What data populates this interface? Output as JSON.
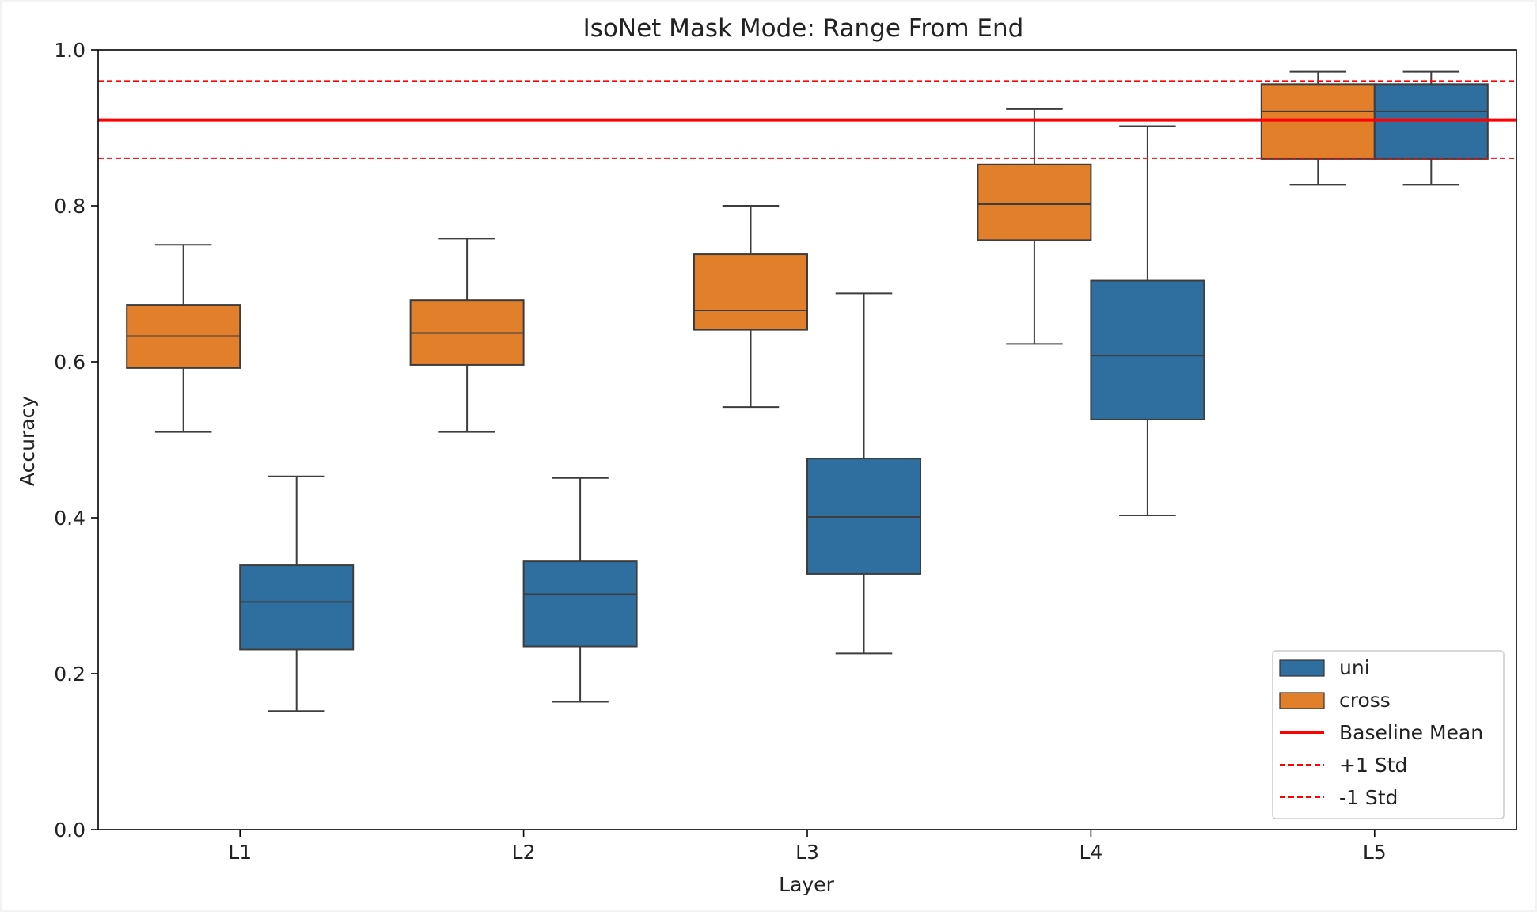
{
  "chart_data": {
    "type": "boxplot",
    "title": "IsoNet Mask Mode: Range From End",
    "xlabel": "Layer",
    "ylabel": "Accuracy",
    "ylim": [
      0.0,
      1.0
    ],
    "yticks": [
      "0.0",
      "0.2",
      "0.4",
      "0.6",
      "0.8",
      "1.0"
    ],
    "categories": [
      "L1",
      "L2",
      "L3",
      "L4",
      "L5"
    ],
    "grid": false,
    "legend_position": "bottom-right",
    "series": [
      {
        "name": "cross",
        "color": "#e17f2b",
        "boxes": [
          {
            "whisker_low": 0.51,
            "q1": 0.592,
            "median": 0.633,
            "q3": 0.673,
            "whisker_high": 0.75
          },
          {
            "whisker_low": 0.51,
            "q1": 0.596,
            "median": 0.637,
            "q3": 0.679,
            "whisker_high": 0.758
          },
          {
            "whisker_low": 0.542,
            "q1": 0.641,
            "median": 0.666,
            "q3": 0.738,
            "whisker_high": 0.8
          },
          {
            "whisker_low": 0.623,
            "q1": 0.756,
            "median": 0.802,
            "q3": 0.853,
            "whisker_high": 0.924
          },
          {
            "whisker_low": 0.827,
            "q1": 0.86,
            "median": 0.921,
            "q3": 0.956,
            "whisker_high": 0.972
          }
        ]
      },
      {
        "name": "uni",
        "color": "#2f6f9f",
        "boxes": [
          {
            "whisker_low": 0.152,
            "q1": 0.231,
            "median": 0.292,
            "q3": 0.339,
            "whisker_high": 0.453
          },
          {
            "whisker_low": 0.164,
            "q1": 0.235,
            "median": 0.302,
            "q3": 0.344,
            "whisker_high": 0.451
          },
          {
            "whisker_low": 0.226,
            "q1": 0.328,
            "median": 0.401,
            "q3": 0.476,
            "whisker_high": 0.688
          },
          {
            "whisker_low": 0.403,
            "q1": 0.526,
            "median": 0.608,
            "q3": 0.704,
            "whisker_high": 0.902
          },
          {
            "whisker_low": 0.827,
            "q1": 0.86,
            "median": 0.921,
            "q3": 0.956,
            "whisker_high": 0.972
          }
        ]
      }
    ],
    "reference_lines": [
      {
        "name": "Baseline Mean",
        "y": 0.91,
        "style": "solid",
        "color": "#ff0000"
      },
      {
        "name": "+1 Std",
        "y": 0.96,
        "style": "dashed",
        "color": "#ff0000"
      },
      {
        "name": "-1 Std",
        "y": 0.861,
        "style": "dashed",
        "color": "#ff0000"
      }
    ],
    "legend": [
      "uni",
      "cross",
      "Baseline Mean",
      "+1 Std",
      "-1 Std"
    ]
  }
}
